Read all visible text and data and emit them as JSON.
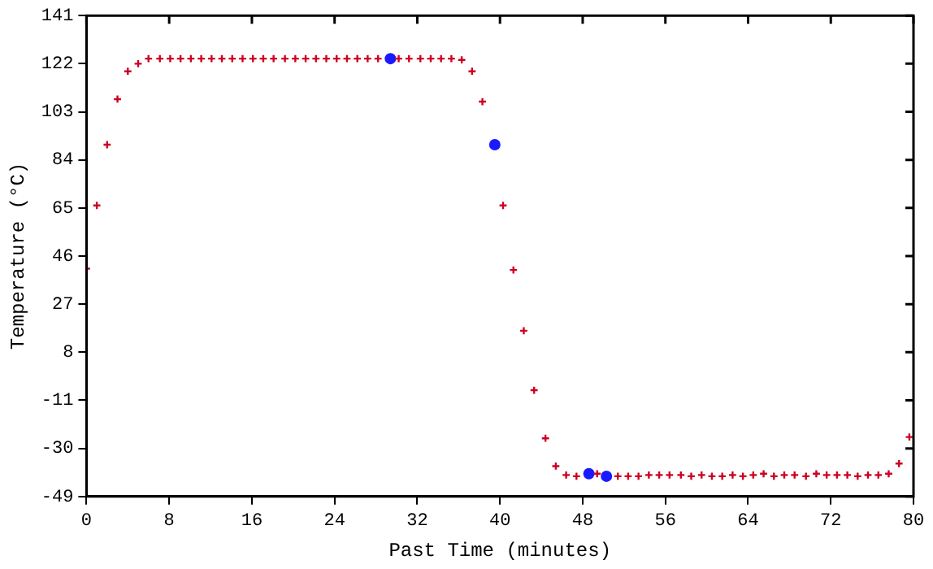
{
  "chart_data": {
    "type": "scatter",
    "xlabel": "Past Time (minutes)",
    "ylabel": "Temperature (°C)",
    "xlim": [
      0,
      80
    ],
    "xticks": [
      0,
      8,
      16,
      24,
      32,
      40,
      48,
      56,
      64,
      72,
      80
    ],
    "ylim": [
      -49,
      141
    ],
    "yticks": [
      -49,
      -30,
      -11,
      8,
      27,
      46,
      65,
      84,
      103,
      122,
      141
    ],
    "grid": false,
    "legend": false,
    "series": [
      {
        "color": "#cc0022",
        "marker": "cross",
        "x": [
          0,
          1.0,
          2.0,
          3.0,
          4.0,
          5.0,
          6.0,
          7.1,
          8.1,
          9.1,
          10.1,
          11.1,
          12.1,
          13.1,
          14.1,
          15.1,
          16.1,
          17.1,
          18.1,
          19.2,
          20.2,
          21.2,
          22.2,
          23.2,
          24.2,
          25.2,
          26.2,
          27.2,
          28.2,
          29.2,
          30.2,
          31.2,
          32.3,
          33.3,
          34.3,
          35.3,
          36.3,
          37.3,
          38.3,
          39.3,
          40.3,
          41.3,
          42.3,
          43.3,
          44.4,
          45.4,
          46.4,
          47.4,
          48.4,
          49.4,
          50.4,
          51.4,
          52.4,
          53.4,
          54.4,
          55.4,
          56.4,
          57.5,
          58.5,
          59.5,
          60.5,
          61.5,
          62.5,
          63.5,
          64.5,
          65.5,
          66.5,
          67.5,
          68.5,
          69.6,
          70.6,
          71.6,
          72.6,
          73.6,
          74.6,
          75.6,
          76.6,
          77.6,
          78.6,
          79.6
        ],
        "values": [
          41,
          66,
          90,
          108,
          119,
          122,
          124,
          124,
          124,
          124,
          124,
          124,
          124,
          124,
          124,
          124,
          124,
          124,
          124,
          124,
          124,
          124,
          124,
          124,
          124,
          124,
          124,
          124,
          124,
          null,
          124,
          124,
          124,
          124,
          124,
          124,
          123.5,
          119,
          107,
          null,
          66,
          40.5,
          16.5,
          -7,
          -26,
          -37,
          -40.5,
          -41,
          null,
          -40,
          null,
          -41,
          -41,
          -41,
          -40.5,
          -40.5,
          -40.5,
          -40.5,
          -41,
          -40.5,
          -41,
          -41,
          -40.5,
          -41,
          -40.5,
          -40,
          -41,
          -40.5,
          -40.5,
          -41,
          -40,
          -40.5,
          -40.5,
          -40.5,
          -41,
          -40.5,
          -40.5,
          -40,
          -36,
          -25.5
        ]
      },
      {
        "color": "#1a1aff",
        "marker": "circle",
        "x": [
          29.4,
          39.5,
          48.6,
          50.3
        ],
        "values": [
          124,
          90,
          -40,
          -41
        ]
      }
    ]
  }
}
